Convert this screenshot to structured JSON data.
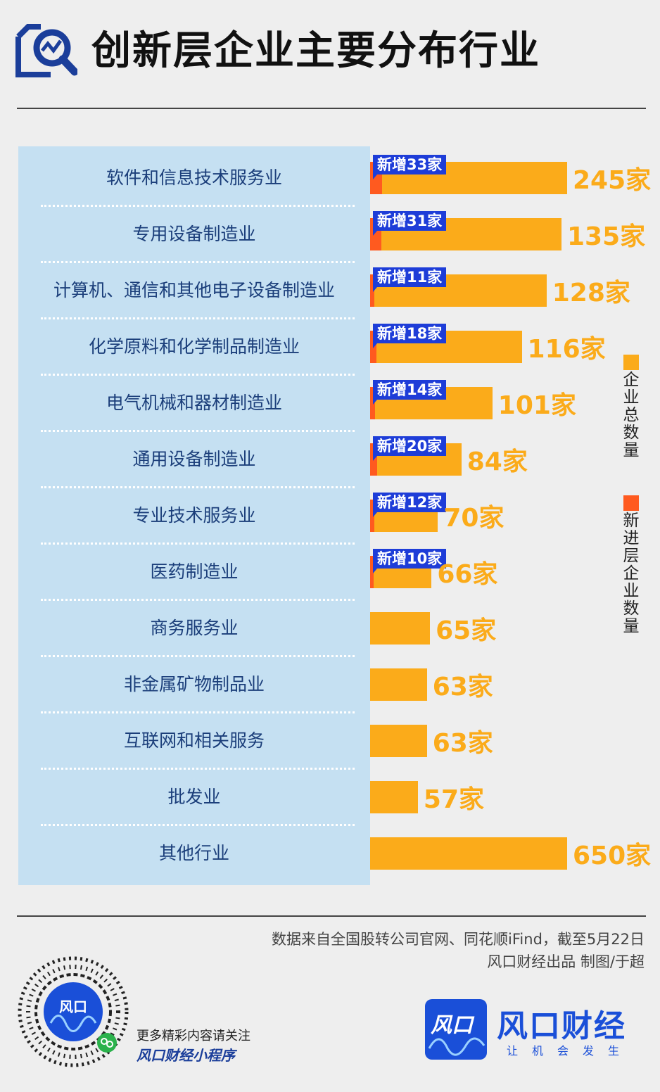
{
  "title": "创新层企业主要分布行业",
  "chart_data": {
    "type": "bar",
    "orientation": "horizontal",
    "categories": [
      "软件和信息技术服务业",
      "专用设备制造业",
      "计算机、通信和其他电子设备制造业",
      "化学原料和化学制品制造业",
      "电气机械和器材制造业",
      "通用设备制造业",
      "专业技术服务业",
      "医药制造业",
      "商务服务业",
      "非金属矿物制品业",
      "互联网和相关服务",
      "批发业",
      "其他行业"
    ],
    "series": [
      {
        "name": "企业总数量",
        "color": "#fbab1a",
        "values": [
          245,
          135,
          128,
          116,
          101,
          84,
          70,
          66,
          65,
          63,
          63,
          57,
          650
        ]
      },
      {
        "name": "新进层企业数量",
        "color": "#ff5a1f",
        "values": [
          33,
          31,
          11,
          18,
          14,
          20,
          12,
          10,
          null,
          null,
          null,
          null,
          null
        ]
      }
    ],
    "value_labels": [
      "245家",
      "135家",
      "128家",
      "116家",
      "101家",
      "84家",
      "70家",
      "66家",
      "65家",
      "63家",
      "63家",
      "57家",
      "650家"
    ],
    "new_labels": [
      "新增33家",
      "新增31家",
      "新增11家",
      "新增18家",
      "新增14家",
      "新增20家",
      "新增12家",
      "新增10家",
      null,
      null,
      null,
      null,
      null
    ],
    "legend": [
      "企业总数量",
      "新进层企业数量"
    ],
    "legend_position": "right"
  },
  "footer": {
    "source": "数据来自全国股转公司官网、同花顺iFind，截至5月22日",
    "credit": "风口财经出品   制图/于超",
    "follow_line1": "更多精彩内容请关注",
    "follow_line2": "风口财经小程序",
    "logo_mark": "风口",
    "logo_name": "风口财经",
    "slogan": "让机会发生"
  }
}
